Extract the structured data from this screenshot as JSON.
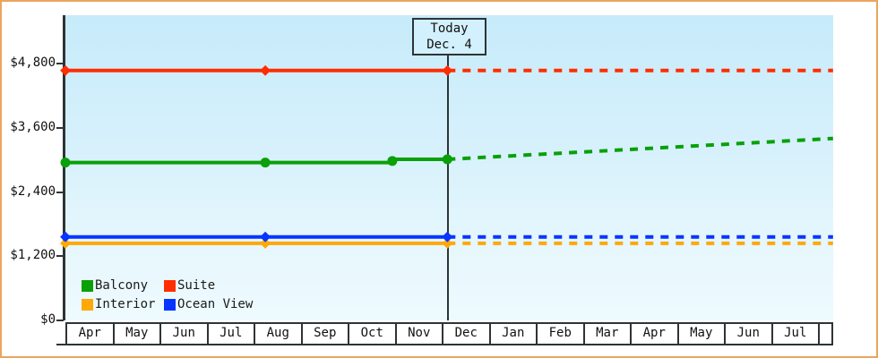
{
  "window": {
    "frame_color": "#eaa55e"
  },
  "today_box": {
    "line1": "Today",
    "line2": "Dec. 4"
  },
  "legend": [
    {
      "name": "Balcony",
      "color": "#09a009"
    },
    {
      "name": "Suite",
      "color": "#ff2d00"
    },
    {
      "name": "Interior",
      "color": "#ffa80a"
    },
    {
      "name": "Ocean View",
      "color": "#0635ff"
    }
  ],
  "chart_data": {
    "type": "line",
    "title": "",
    "xlabel": "",
    "ylabel": "",
    "currency": "USD",
    "x_categories": [
      "Apr",
      "May",
      "Jun",
      "Jul",
      "Aug",
      "Sep",
      "Oct",
      "Nov",
      "Dec",
      "Jan",
      "Feb",
      "Mar",
      "Apr",
      "May",
      "Jun",
      "Jul"
    ],
    "x_range_months": [
      0,
      16.32
    ],
    "y_ticks": [
      {
        "value": 0,
        "label": "$0"
      },
      {
        "value": 1200,
        "label": "$1,200"
      },
      {
        "value": 2400,
        "label": "$2,400"
      },
      {
        "value": 3600,
        "label": "$3,600"
      },
      {
        "value": 4800,
        "label": "$4,800"
      }
    ],
    "ylim": [
      0,
      5700
    ],
    "grid": false,
    "legend_position": "bottom-left-inside",
    "today": {
      "x": 8.12,
      "label": [
        "Today",
        "Dec. 4"
      ]
    },
    "paint_order": [
      2,
      3,
      0,
      1
    ],
    "series": [
      {
        "name": "Balcony",
        "color": "#09a009",
        "marker": "circle",
        "solid": [
          [
            0,
            2950
          ],
          [
            4.25,
            2950
          ],
          [
            6.88,
            2950
          ],
          [
            7.02,
            3010
          ],
          [
            8.12,
            3010
          ]
        ],
        "markers": [
          [
            0,
            2950
          ],
          [
            4.25,
            2950
          ],
          [
            6.95,
            2980
          ],
          [
            8.12,
            3010
          ]
        ],
        "dashed": [
          [
            8.12,
            3010
          ],
          [
            16.32,
            3400
          ]
        ]
      },
      {
        "name": "Suite",
        "color": "#ff2d00",
        "marker": "diamond",
        "solid": [
          [
            0,
            4670
          ],
          [
            4.25,
            4670
          ],
          [
            8.12,
            4670
          ]
        ],
        "markers": [
          [
            0,
            4670
          ],
          [
            4.25,
            4670
          ],
          [
            8.12,
            4670
          ]
        ],
        "dashed": [
          [
            8.12,
            4670
          ],
          [
            16.32,
            4670
          ]
        ]
      },
      {
        "name": "Interior",
        "color": "#ffa80a",
        "marker": "diamond",
        "solid": [
          [
            0,
            1440
          ],
          [
            4.25,
            1440
          ],
          [
            8.12,
            1440
          ]
        ],
        "markers": [
          [
            0,
            1440
          ],
          [
            4.25,
            1440
          ],
          [
            8.12,
            1440
          ]
        ],
        "dashed": [
          [
            8.12,
            1440
          ],
          [
            16.32,
            1440
          ]
        ]
      },
      {
        "name": "Ocean View",
        "color": "#0635ff",
        "marker": "diamond",
        "solid": [
          [
            0,
            1560
          ],
          [
            4.25,
            1560
          ],
          [
            8.12,
            1560
          ]
        ],
        "markers": [
          [
            0,
            1560
          ],
          [
            4.25,
            1560
          ],
          [
            8.12,
            1560
          ]
        ],
        "dashed": [
          [
            8.12,
            1560
          ],
          [
            16.32,
            1560
          ]
        ]
      }
    ]
  }
}
